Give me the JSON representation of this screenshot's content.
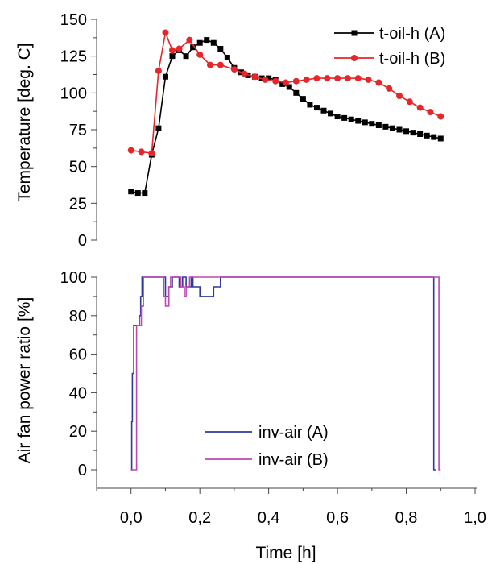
{
  "chart_data": [
    {
      "type": "line",
      "title": "",
      "ylabel": "Temperature [deg. C]",
      "xlim": [
        -0.1,
        1.0
      ],
      "ylim": [
        0,
        150
      ],
      "yticks": [
        "0",
        "25",
        "50",
        "75",
        "100",
        "125",
        "150"
      ],
      "grid": false,
      "legend_position": "top-right",
      "series": [
        {
          "name": "t-oil-h (A)",
          "color": "#000000",
          "marker": "square",
          "points": [
            [
              0.0,
              33
            ],
            [
              0.02,
              32
            ],
            [
              0.04,
              32
            ],
            [
              0.06,
              58
            ],
            [
              0.08,
              76
            ],
            [
              0.1,
              111
            ],
            [
              0.12,
              125
            ],
            [
              0.14,
              129
            ],
            [
              0.16,
              125
            ],
            [
              0.18,
              131
            ],
            [
              0.2,
              134
            ],
            [
              0.22,
              136
            ],
            [
              0.24,
              134
            ],
            [
              0.26,
              130
            ],
            [
              0.28,
              124
            ],
            [
              0.3,
              117
            ],
            [
              0.32,
              114
            ],
            [
              0.34,
              112
            ],
            [
              0.36,
              111
            ],
            [
              0.38,
              110
            ],
            [
              0.4,
              110
            ],
            [
              0.42,
              109
            ],
            [
              0.44,
              106
            ],
            [
              0.46,
              104
            ],
            [
              0.48,
              100
            ],
            [
              0.5,
              96
            ],
            [
              0.52,
              92
            ],
            [
              0.54,
              90
            ],
            [
              0.56,
              88
            ],
            [
              0.58,
              86
            ],
            [
              0.6,
              84
            ],
            [
              0.62,
              83
            ],
            [
              0.64,
              82
            ],
            [
              0.66,
              81
            ],
            [
              0.68,
              80
            ],
            [
              0.7,
              79
            ],
            [
              0.72,
              78
            ],
            [
              0.74,
              77
            ],
            [
              0.76,
              76
            ],
            [
              0.78,
              75
            ],
            [
              0.8,
              74
            ],
            [
              0.82,
              73
            ],
            [
              0.84,
              72
            ],
            [
              0.86,
              71
            ],
            [
              0.88,
              70
            ],
            [
              0.9,
              69
            ]
          ]
        },
        {
          "name": "t-oil-h (B)",
          "color": "#e8262a",
          "marker": "circle",
          "points": [
            [
              0.0,
              61
            ],
            [
              0.03,
              60
            ],
            [
              0.06,
              59
            ],
            [
              0.08,
              115
            ],
            [
              0.1,
              141
            ],
            [
              0.12,
              129
            ],
            [
              0.14,
              130
            ],
            [
              0.17,
              136
            ],
            [
              0.2,
              126
            ],
            [
              0.23,
              119
            ],
            [
              0.26,
              119
            ],
            [
              0.3,
              116
            ],
            [
              0.33,
              113
            ],
            [
              0.36,
              111
            ],
            [
              0.39,
              109
            ],
            [
              0.42,
              108
            ],
            [
              0.45,
              107
            ],
            [
              0.48,
              108
            ],
            [
              0.51,
              109
            ],
            [
              0.54,
              110
            ],
            [
              0.57,
              110
            ],
            [
              0.6,
              110
            ],
            [
              0.63,
              110
            ],
            [
              0.66,
              110
            ],
            [
              0.69,
              109
            ],
            [
              0.72,
              107
            ],
            [
              0.75,
              103
            ],
            [
              0.78,
              98
            ],
            [
              0.81,
              94
            ],
            [
              0.84,
              90
            ],
            [
              0.87,
              87
            ],
            [
              0.9,
              84
            ]
          ]
        }
      ]
    },
    {
      "type": "line",
      "title": "",
      "xlabel": "Time [h]",
      "ylabel": "Air fan power ratio [%]",
      "xlim": [
        -0.1,
        1.0
      ],
      "ylim": [
        -5,
        100
      ],
      "xticks": [
        "0,0",
        "0,2",
        "0,4",
        "0,6",
        "0,8",
        "1,0"
      ],
      "yticks": [
        "0",
        "20",
        "40",
        "60",
        "80",
        "100"
      ],
      "grid": false,
      "legend_position": "bottom-center",
      "series": [
        {
          "name": "inv-air (A)",
          "color": "#2e3a9f",
          "step": true,
          "points": [
            [
              0.0,
              0
            ],
            [
              0.002,
              25
            ],
            [
              0.004,
              50
            ],
            [
              0.008,
              75
            ],
            [
              0.02,
              75
            ],
            [
              0.024,
              80
            ],
            [
              0.028,
              90
            ],
            [
              0.032,
              100
            ],
            [
              0.1,
              100
            ],
            [
              0.1,
              90
            ],
            [
              0.11,
              95
            ],
            [
              0.12,
              100
            ],
            [
              0.14,
              100
            ],
            [
              0.14,
              95
            ],
            [
              0.15,
              100
            ],
            [
              0.16,
              95
            ],
            [
              0.17,
              95
            ],
            [
              0.175,
              100
            ],
            [
              0.18,
              95
            ],
            [
              0.19,
              95
            ],
            [
              0.2,
              90
            ],
            [
              0.23,
              90
            ],
            [
              0.24,
              95
            ],
            [
              0.25,
              95
            ],
            [
              0.26,
              100
            ],
            [
              0.88,
              100
            ],
            [
              0.88,
              0
            ],
            [
              0.886,
              0
            ]
          ]
        },
        {
          "name": "inv-air (B)",
          "color": "#c046b0",
          "step": true,
          "points": [
            [
              0.0,
              0
            ],
            [
              0.016,
              0
            ],
            [
              0.016,
              75
            ],
            [
              0.03,
              75
            ],
            [
              0.03,
              85
            ],
            [
              0.036,
              100
            ],
            [
              0.09,
              100
            ],
            [
              0.095,
              90
            ],
            [
              0.1,
              85
            ],
            [
              0.105,
              85
            ],
            [
              0.11,
              95
            ],
            [
              0.115,
              100
            ],
            [
              0.14,
              100
            ],
            [
              0.145,
              95
            ],
            [
              0.155,
              90
            ],
            [
              0.16,
              95
            ],
            [
              0.17,
              100
            ],
            [
              0.895,
              100
            ],
            [
              0.895,
              0
            ],
            [
              0.9,
              0
            ]
          ]
        }
      ]
    }
  ]
}
